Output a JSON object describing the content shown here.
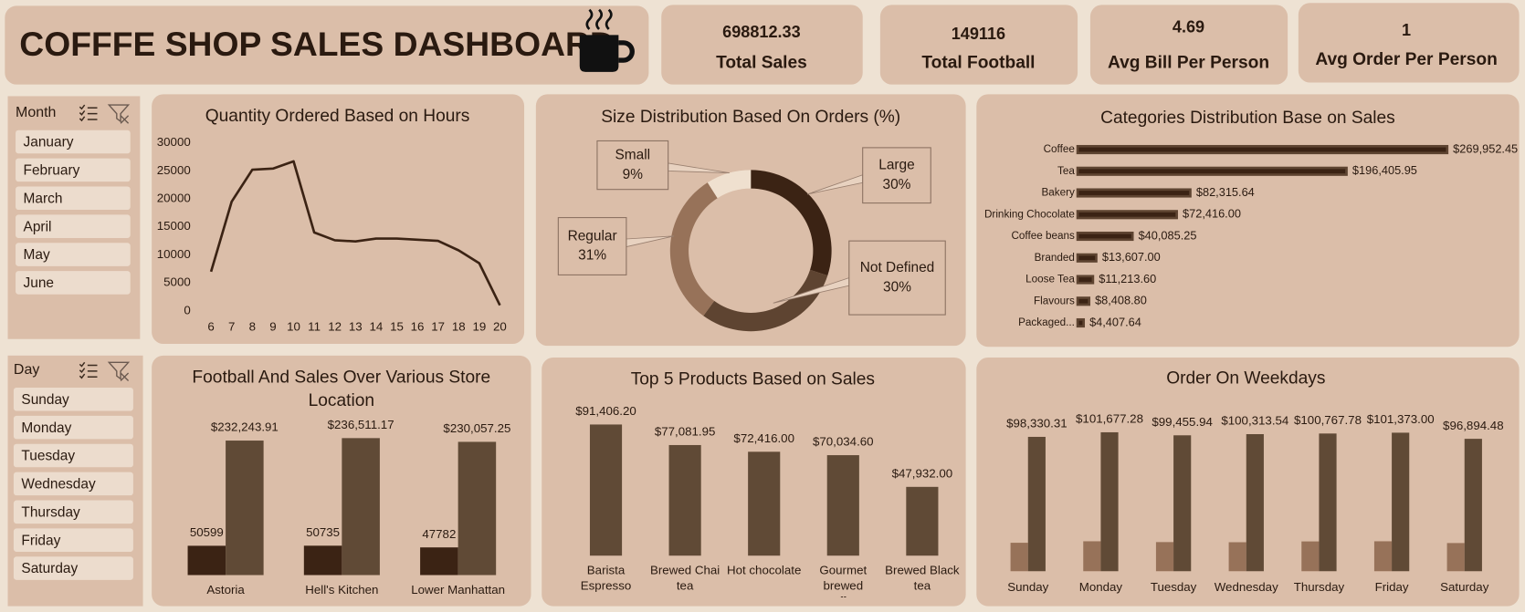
{
  "header": {
    "title": "COFFFE SHOP SALES DASHBOARD"
  },
  "kpis": [
    {
      "value": "698812.33",
      "label": "Total Sales"
    },
    {
      "value": "149116",
      "label": "Total Football"
    },
    {
      "value": "4.69",
      "label": "Avg Bill Per Person"
    },
    {
      "value": "1",
      "label": "Avg Order Per Person"
    }
  ],
  "slicers": [
    {
      "title": "Month",
      "items": [
        "January",
        "February",
        "March",
        "April",
        "May",
        "June"
      ]
    },
    {
      "title": "Day",
      "items": [
        "Sunday",
        "Monday",
        "Tuesday",
        "Wednesday",
        "Thursday",
        "Friday",
        "Saturday"
      ]
    }
  ],
  "chart_data": [
    {
      "type": "line",
      "title": "Quantity Ordered Based on Hours",
      "x": [
        6,
        7,
        8,
        9,
        10,
        11,
        12,
        13,
        14,
        15,
        16,
        17,
        18,
        19,
        20
      ],
      "values": [
        7000,
        19500,
        25200,
        25400,
        26700,
        14000,
        12600,
        12400,
        12900,
        12900,
        12700,
        12500,
        10800,
        8500,
        1000
      ],
      "color": "#3b2314",
      "xlim": [
        6,
        20
      ],
      "ylim": [
        0,
        30000
      ],
      "yticks": [
        0,
        5000,
        10000,
        15000,
        20000,
        25000,
        30000
      ],
      "grid": false
    },
    {
      "type": "pie",
      "donut": true,
      "title": "Size Distribution Based On Orders (%)",
      "categories": [
        "Large",
        "Not Defined",
        "Regular",
        "Small"
      ],
      "values": [
        30,
        30,
        31,
        9
      ],
      "value_labels": [
        "30%",
        "30%",
        "31%",
        "9%"
      ],
      "colors": [
        "#3b2314",
        "#5e4431",
        "#977259",
        "#efe0cf"
      ]
    },
    {
      "type": "bar",
      "horizontal": true,
      "title": "Categories Distribution Base on Sales",
      "categories": [
        "Coffee",
        "Tea",
        "Bakery",
        "Drinking Chocolate",
        "Coffee beans",
        "Branded",
        "Loose Tea",
        "Flavours",
        "Packaged..."
      ],
      "values": [
        269952.45,
        196405.95,
        82315.64,
        72416.0,
        40085.25,
        13607.0,
        11213.6,
        8408.8,
        4407.64
      ],
      "value_labels": [
        "$269,952.45",
        "$196,405.95",
        "$82,315.64",
        "$72,416.00",
        "$40,085.25",
        "$13,607.00",
        "$11,213.60",
        "$8,408.80",
        "$4,407.64"
      ],
      "color": "#3b2314"
    },
    {
      "type": "bar",
      "title": "Football And Sales Over Various Store Location",
      "categories": [
        "Astoria",
        "Hell's Kitchen",
        "Lower Manhattan"
      ],
      "series": [
        {
          "color": "#3b2314",
          "values": [
            50599,
            50735,
            47782
          ],
          "data_labels": true
        },
        {
          "color": "#604a36",
          "values": [
            232243.91,
            236511.17,
            230057.25
          ],
          "value_labels": [
            "$232,243.91",
            "$236,511.17",
            "$230,057.25"
          ]
        }
      ]
    },
    {
      "type": "bar",
      "title": "Top 5 Products Based on Sales",
      "categories": [
        "Barista Espresso",
        "Brewed Chai tea",
        "Hot chocolate",
        "Gourmet brewed coffee",
        "Brewed Black tea"
      ],
      "values": [
        91406.2,
        77081.95,
        72416.0,
        70034.6,
        47932.0
      ],
      "value_labels": [
        "$91,406.20",
        "$77,081.95",
        "$72,416.00",
        "$70,034.60",
        "$47,932.00"
      ],
      "color": "#604a36"
    },
    {
      "type": "bar",
      "title": "Order On Weekdays",
      "categories": [
        "Sunday",
        "Monday",
        "Tuesday",
        "Wednesday",
        "Thursday",
        "Friday",
        "Saturday"
      ],
      "series": [
        {
          "color": "#977259",
          "values": [
            20800,
            21900,
            21300,
            21200,
            21800,
            21900,
            20600
          ]
        },
        {
          "color": "#604a36",
          "values": [
            98330.31,
            101677.28,
            99455.94,
            100313.54,
            100767.78,
            101373.0,
            96894.48
          ],
          "value_labels": [
            "$98,330.31",
            "$101,677.28",
            "$99,455.94",
            "$100,313.54",
            "$100,767.78",
            "$101,373.00",
            "$96,894.48"
          ]
        }
      ]
    }
  ]
}
